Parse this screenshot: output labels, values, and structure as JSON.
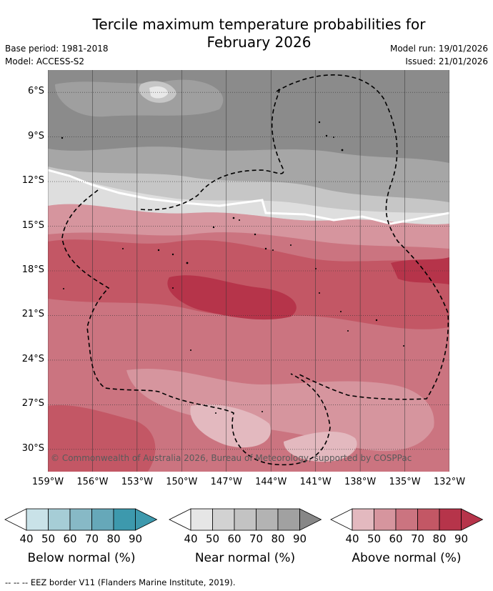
{
  "title_line1": "Tercile maximum temperature probabilities for",
  "title_line2": "February 2026",
  "meta": {
    "base_period": "Base period: 1981-2018",
    "model": "Model: ACCESS-S2",
    "model_run": "Model run: 19/01/2026",
    "issued": "Issued: 21/01/2026"
  },
  "map": {
    "lat_labels": [
      "6°S",
      "9°S",
      "12°S",
      "15°S",
      "18°S",
      "21°S",
      "24°S",
      "27°S",
      "30°S"
    ],
    "lat_values": [
      -6,
      -9,
      -12,
      -15,
      -18,
      -21,
      -24,
      -27,
      -30
    ],
    "lon_labels": [
      "159°W",
      "156°W",
      "153°W",
      "150°W",
      "147°W",
      "144°W",
      "141°W",
      "138°W",
      "135°W",
      "132°W"
    ],
    "lon_values": [
      -159,
      -156,
      -153,
      -150,
      -147,
      -144,
      -141,
      -138,
      -135,
      -132
    ],
    "lat_range": [
      -31.5,
      -4.5
    ],
    "lon_range": [
      -159,
      -132
    ],
    "copyright": "© Commonwealth of Australia 2026, Bureau of Meteorology, supported by COSPPac"
  },
  "legend": {
    "ticks": [
      "40",
      "50",
      "60",
      "70",
      "80",
      "90"
    ],
    "below": {
      "label": "Below normal (%)",
      "colors": [
        "#ffffff",
        "#c9e2e8",
        "#a6cdd6",
        "#87b9c6",
        "#66a8b9",
        "#3d99ad",
        "#3d99ad"
      ]
    },
    "near": {
      "label": "Near normal (%)",
      "colors": [
        "#ffffff",
        "#e6e6e6",
        "#d2d2d2",
        "#c3c3c3",
        "#b3b3b3",
        "#a1a1a1",
        "#878787"
      ]
    },
    "above": {
      "label": "Above normal (%)",
      "colors": [
        "#ffffff",
        "#e3b9bf",
        "#d6959e",
        "#cb7480",
        "#c35765",
        "#b6344a",
        "#b6344a"
      ]
    }
  },
  "footnote": "-- -- -- EEZ border V11 (Flanders Marine Institute, 2019)."
}
